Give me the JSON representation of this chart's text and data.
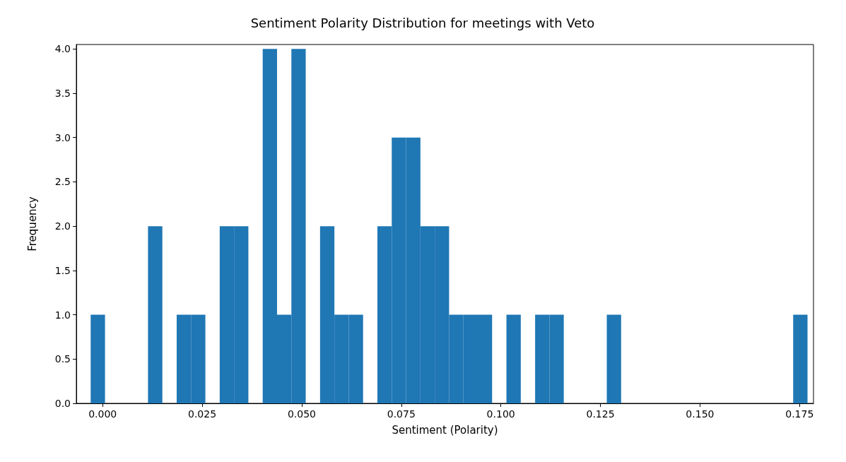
{
  "chart_data": {
    "type": "histogram",
    "title": "Sentiment Polarity Distribution for meetings with Veto",
    "xlabel": "Sentiment (Polarity)",
    "ylabel": "Frequency",
    "color": "#1f77b4",
    "bins": [
      -0.003,
      0.0006,
      0.0042,
      0.0078,
      0.0114,
      0.015,
      0.0186,
      0.0222,
      0.0258,
      0.0294,
      0.033,
      0.0366,
      0.0402,
      0.0438,
      0.0474,
      0.051,
      0.0546,
      0.0582,
      0.0618,
      0.0654,
      0.069,
      0.0726,
      0.0762,
      0.0798,
      0.0834,
      0.087,
      0.0906,
      0.0942,
      0.0978,
      0.1014,
      0.105,
      0.1086,
      0.1122,
      0.1158,
      0.1194,
      0.123,
      0.1266,
      0.1302,
      0.1338,
      0.1374,
      0.141,
      0.1446,
      0.1482,
      0.1518,
      0.1554,
      0.159,
      0.1626,
      0.1662,
      0.1698,
      0.1734,
      0.177
    ],
    "values": [
      1,
      0,
      0,
      0,
      2,
      0,
      1,
      1,
      0,
      2,
      2,
      0,
      4,
      1,
      4,
      0,
      2,
      1,
      1,
      0,
      2,
      3,
      3,
      2,
      2,
      1,
      1,
      1,
      0,
      1,
      0,
      1,
      1,
      0,
      0,
      0,
      1,
      0,
      0,
      0,
      0,
      0,
      0,
      0,
      0,
      0,
      0,
      0,
      0,
      1
    ],
    "xlim": [
      -0.0066,
      0.1785
    ],
    "ylim": [
      0,
      4.05
    ],
    "xticks": [
      {
        "value": 0,
        "label": "0.000"
      },
      {
        "value": 0.025,
        "label": "0.025"
      },
      {
        "value": 0.05,
        "label": "0.050"
      },
      {
        "value": 0.075,
        "label": "0.075"
      },
      {
        "value": 0.1,
        "label": "0.100"
      },
      {
        "value": 0.125,
        "label": "0.125"
      },
      {
        "value": 0.15,
        "label": "0.150"
      },
      {
        "value": 0.175,
        "label": "0.175"
      }
    ],
    "yticks": [
      {
        "value": 0,
        "label": "0.0"
      },
      {
        "value": 0.5,
        "label": "0.5"
      },
      {
        "value": 1,
        "label": "1.0"
      },
      {
        "value": 1.5,
        "label": "1.5"
      },
      {
        "value": 2,
        "label": "2.0"
      },
      {
        "value": 2.5,
        "label": "2.5"
      },
      {
        "value": 3,
        "label": "3.0"
      },
      {
        "value": 3.5,
        "label": "3.5"
      },
      {
        "value": 4,
        "label": "4.0"
      }
    ],
    "grid": false
  }
}
